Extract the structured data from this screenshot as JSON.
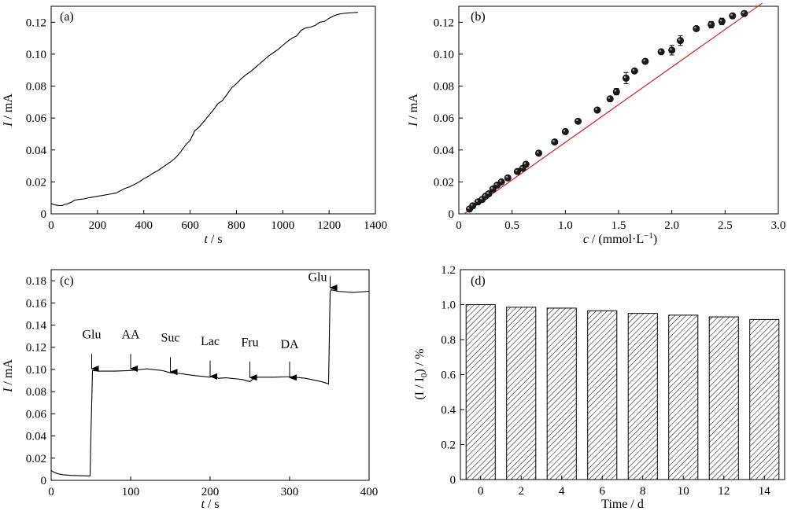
{
  "chart_data": [
    {
      "panel": "(a)",
      "type": "line",
      "xlabel_var": "t",
      "xlabel_unit": " / s",
      "ylabel_var": "I",
      "ylabel_unit": " / mA",
      "xlim": [
        0,
        1400
      ],
      "ylim": [
        0,
        0.13
      ],
      "xticks": [
        0,
        200,
        400,
        600,
        800,
        1000,
        1200,
        1400
      ],
      "yticks": [
        0,
        0.02,
        0.04,
        0.06,
        0.08,
        0.1,
        0.12
      ],
      "ytick_labels": [
        "0",
        "0.02",
        "0.04",
        "0.06",
        "0.08",
        "0.10",
        "0.12"
      ],
      "series": [
        {
          "x": [
            0,
            10,
            20,
            30,
            50,
            55,
            70,
            90,
            100,
            120,
            140,
            160,
            180,
            200,
            220,
            240,
            260,
            280,
            300,
            320,
            340,
            360,
            380,
            400,
            420,
            440,
            460,
            480,
            500,
            520,
            540,
            560,
            580,
            600,
            620,
            640,
            660,
            680,
            700,
            720,
            740,
            760,
            780,
            800,
            820,
            840,
            860,
            880,
            900,
            920,
            940,
            960,
            980,
            1000,
            1020,
            1040,
            1060,
            1080,
            1100,
            1120,
            1140,
            1160,
            1180,
            1200,
            1220,
            1240,
            1260,
            1280,
            1300,
            1325
          ],
          "y": [
            0.0065,
            0.0058,
            0.0055,
            0.0052,
            0.0052,
            0.0058,
            0.0062,
            0.0075,
            0.0085,
            0.009,
            0.0093,
            0.01,
            0.0105,
            0.011,
            0.0115,
            0.012,
            0.0125,
            0.013,
            0.0145,
            0.016,
            0.017,
            0.0185,
            0.02,
            0.022,
            0.0235,
            0.0255,
            0.027,
            0.029,
            0.031,
            0.033,
            0.0355,
            0.039,
            0.043,
            0.046,
            0.052,
            0.0545,
            0.058,
            0.0615,
            0.065,
            0.069,
            0.071,
            0.075,
            0.079,
            0.0815,
            0.0845,
            0.087,
            0.089,
            0.0915,
            0.094,
            0.0965,
            0.099,
            0.101,
            0.103,
            0.1055,
            0.108,
            0.11,
            0.1115,
            0.115,
            0.1165,
            0.117,
            0.118,
            0.12,
            0.1205,
            0.1225,
            0.124,
            0.125,
            0.1255,
            0.1258,
            0.126,
            0.1262
          ]
        }
      ]
    },
    {
      "panel": "(b)",
      "type": "scatter",
      "xlabel_var": "c",
      "xlabel_unit": " / (mmol·L",
      "xlabel_sup": "−1",
      "xlabel_close": ")",
      "ylabel_var": "I",
      "ylabel_unit": " / mA",
      "xlim": [
        0,
        3.0
      ],
      "ylim": [
        0,
        0.13
      ],
      "xticks": [
        0,
        0.5,
        1.0,
        1.5,
        2.0,
        2.5,
        3.0
      ],
      "xtick_labels": [
        "0",
        "0.5",
        "1.0",
        "1.5",
        "2.0",
        "2.5",
        "3.0"
      ],
      "yticks": [
        0,
        0.02,
        0.04,
        0.06,
        0.08,
        0.1,
        0.12
      ],
      "ytick_labels": [
        "0",
        "0.02",
        "0.04",
        "0.06",
        "0.08",
        "0.10",
        "0.12"
      ],
      "fit_line": {
        "x": [
          0.05,
          2.85
        ],
        "y": [
          0.0,
          0.132
        ],
        "color": "#d42020"
      },
      "points": {
        "x": [
          0.1,
          0.13,
          0.18,
          0.22,
          0.25,
          0.28,
          0.32,
          0.36,
          0.4,
          0.46,
          0.55,
          0.6,
          0.63,
          0.75,
          0.9,
          1.0,
          1.12,
          1.3,
          1.42,
          1.48,
          1.57,
          1.65,
          1.75,
          1.9,
          2.0,
          2.08,
          2.23,
          2.37,
          2.47,
          2.57,
          2.68
        ],
        "y": [
          0.003,
          0.005,
          0.0075,
          0.009,
          0.011,
          0.0125,
          0.0155,
          0.018,
          0.02,
          0.0225,
          0.0265,
          0.0285,
          0.031,
          0.038,
          0.045,
          0.0515,
          0.058,
          0.065,
          0.072,
          0.0765,
          0.085,
          0.0895,
          0.0955,
          0.1015,
          0.1025,
          0.1085,
          0.116,
          0.1185,
          0.1205,
          0.124,
          0.1255
        ],
        "yerr": [
          0.001,
          0.001,
          0.001,
          0.001,
          0.001,
          0.001,
          0.001,
          0.001,
          0.001,
          0.001,
          0.001,
          0.001,
          0.001,
          0.001,
          0.001,
          0.001,
          0.001,
          0.001,
          0.001,
          0.002,
          0.0035,
          0.001,
          0.001,
          0.001,
          0.003,
          0.003,
          0.001,
          0.002,
          0.002,
          0.001,
          0.001
        ]
      }
    },
    {
      "panel": "(c)",
      "type": "line",
      "xlabel_var": "t",
      "xlabel_unit": " / s",
      "ylabel_var": "I",
      "ylabel_unit": " / mA",
      "xlim": [
        0,
        400
      ],
      "ylim": [
        0,
        0.19
      ],
      "xticks": [
        0,
        100,
        200,
        300,
        400
      ],
      "yticks": [
        0,
        0.02,
        0.04,
        0.06,
        0.08,
        0.1,
        0.12,
        0.14,
        0.16,
        0.18
      ],
      "ytick_labels": [
        "0",
        "0.02",
        "0.04",
        "0.06",
        "0.08",
        "0.10",
        "0.12",
        "0.14",
        "0.16",
        "0.18"
      ],
      "series": [
        {
          "x": [
            0,
            3,
            8,
            15,
            25,
            35,
            45,
            49,
            50,
            52,
            60,
            80,
            100,
            120,
            140,
            150,
            160,
            180,
            200,
            205,
            210,
            220,
            240,
            250,
            255,
            260,
            280,
            300,
            320,
            340,
            349,
            350,
            351,
            352,
            360,
            380,
            400
          ],
          "y": [
            0.009,
            0.0075,
            0.006,
            0.005,
            0.0045,
            0.0042,
            0.004,
            0.004,
            0.04,
            0.099,
            0.0985,
            0.0985,
            0.099,
            0.1005,
            0.099,
            0.097,
            0.0965,
            0.0945,
            0.093,
            0.095,
            0.092,
            0.0925,
            0.091,
            0.089,
            0.092,
            0.093,
            0.093,
            0.0935,
            0.092,
            0.089,
            0.087,
            0.13,
            0.17,
            0.172,
            0.1705,
            0.1695,
            0.1705
          ]
        }
      ],
      "annotations": [
        {
          "label": "Glu",
          "x": 51,
          "tip_y": 0.1,
          "base_y": 0.114,
          "text_y": 0.128
        },
        {
          "label": "AA",
          "x": 100,
          "tip_y": 0.1,
          "base_y": 0.114,
          "text_y": 0.128
        },
        {
          "label": "Suc",
          "x": 150,
          "tip_y": 0.097,
          "base_y": 0.111,
          "text_y": 0.125
        },
        {
          "label": "Lac",
          "x": 200,
          "tip_y": 0.093,
          "base_y": 0.108,
          "text_y": 0.122
        },
        {
          "label": "Fru",
          "x": 250,
          "tip_y": 0.092,
          "base_y": 0.107,
          "text_y": 0.121
        },
        {
          "label": "DA",
          "x": 300,
          "tip_y": 0.092,
          "base_y": 0.107,
          "text_y": 0.119
        },
        {
          "label": "Glu",
          "x": 351,
          "tip_y": 0.173,
          "base_y": 0.184,
          "text_y": 0.184
        }
      ]
    },
    {
      "panel": "(d)",
      "type": "bar",
      "xlabel": "Time / d",
      "ylabel_pre": "(I / I",
      "ylabel_sub": "0",
      "ylabel_post": ") / %",
      "categories": [
        "0",
        "2",
        "4",
        "6",
        "8",
        "10",
        "12",
        "14"
      ],
      "values": [
        1.0,
        0.985,
        0.98,
        0.965,
        0.95,
        0.94,
        0.93,
        0.915
      ],
      "ylim": [
        0,
        1.2
      ],
      "yticks": [
        0,
        0.2,
        0.4,
        0.6,
        0.8,
        1.0,
        1.2
      ],
      "ytick_labels": [
        "0",
        "0.2",
        "0.4",
        "0.6",
        "0.8",
        "1.0",
        "1.2"
      ],
      "grid": false,
      "fill": "hatched"
    }
  ]
}
